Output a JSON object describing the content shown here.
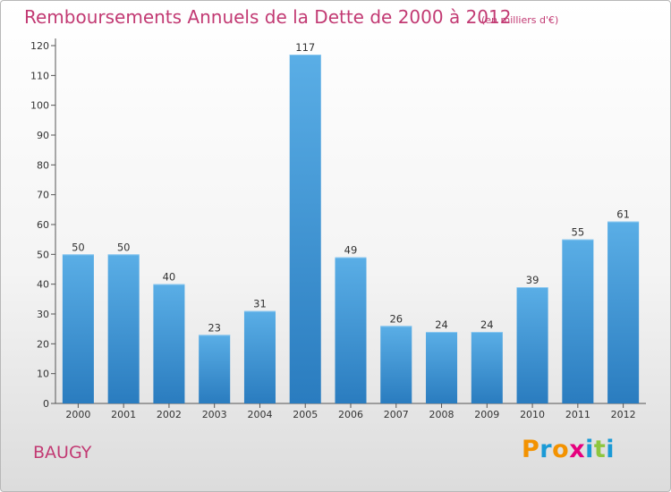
{
  "header": {
    "title": "Remboursements Annuels de la Dette de 2000 à 2012",
    "unit": "(en milliers d'€)"
  },
  "footer": {
    "city": "BAUGY",
    "logo": {
      "letters": [
        "P",
        "r",
        "o",
        "x",
        "i",
        "t",
        "i"
      ],
      "colors": [
        "#f39200",
        "#1a9ad6",
        "#f39200",
        "#e6007e",
        "#1a9ad6",
        "#8dc63f",
        "#1a9ad6"
      ]
    }
  },
  "colors": {
    "title": "#c23a73",
    "bar_top": "#5aaee6",
    "bar_bottom": "#2a7cbf"
  },
  "chart_data": {
    "type": "bar",
    "title": "Remboursements Annuels de la Dette de 2000 à 2012",
    "xlabel": "",
    "ylabel": "",
    "ylim": [
      0,
      120
    ],
    "yticks": [
      0,
      10,
      20,
      30,
      40,
      50,
      60,
      70,
      80,
      90,
      100,
      110,
      120
    ],
    "grid": false,
    "categories": [
      "2000",
      "2001",
      "2002",
      "2003",
      "2004",
      "2005",
      "2006",
      "2007",
      "2008",
      "2009",
      "2010",
      "2011",
      "2012"
    ],
    "values": [
      50,
      50,
      40,
      23,
      31,
      117,
      49,
      26,
      24,
      24,
      39,
      55,
      61
    ]
  }
}
